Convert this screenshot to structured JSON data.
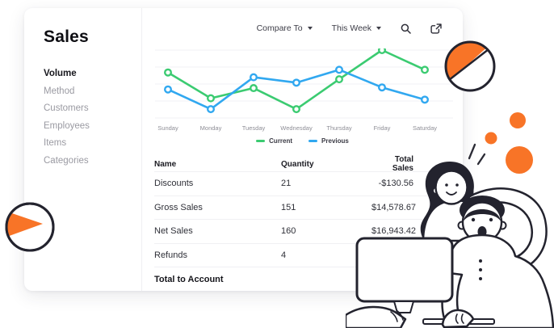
{
  "sidebar": {
    "title": "Sales",
    "items": [
      {
        "label": "Volume",
        "active": true
      },
      {
        "label": "Method",
        "active": false
      },
      {
        "label": "Customers",
        "active": false
      },
      {
        "label": "Employees",
        "active": false
      },
      {
        "label": "Items",
        "active": false
      },
      {
        "label": "Categories",
        "active": false
      }
    ]
  },
  "toolbar": {
    "compare_label": "Compare To",
    "period_label": "This Week"
  },
  "chart_data": {
    "type": "line",
    "title": "",
    "x": [
      "Sunday",
      "Monday",
      "Tuesday",
      "Wednesday",
      "Thursday",
      "Friday",
      "Saturday"
    ],
    "series": [
      {
        "name": "Current",
        "color": "#3BCB71",
        "values": [
          67,
          29,
          44,
          13,
          57,
          100,
          71
        ]
      },
      {
        "name": "Previous",
        "color": "#31A8F0",
        "values": [
          42,
          13,
          60,
          52,
          71,
          45,
          27
        ]
      }
    ],
    "ylim": [
      0,
      100
    ],
    "grid": true,
    "legend_position": "bottom"
  },
  "table": {
    "columns": [
      "Name",
      "Quantity",
      "Total Sales"
    ],
    "rows": [
      {
        "name": "Discounts",
        "quantity": "21",
        "total": "-$130.56"
      },
      {
        "name": "Gross Sales",
        "quantity": "151",
        "total": "$14,578.67"
      },
      {
        "name": "Net Sales",
        "quantity": "160",
        "total": "$16,943.42"
      },
      {
        "name": "Refunds",
        "quantity": "4",
        "total": ""
      }
    ],
    "footer_label": "Total to Account"
  },
  "colors": {
    "accent_orange": "#F87427",
    "chart_green": "#3BCB71",
    "chart_blue": "#31A8F0",
    "ink": "#23232E"
  }
}
